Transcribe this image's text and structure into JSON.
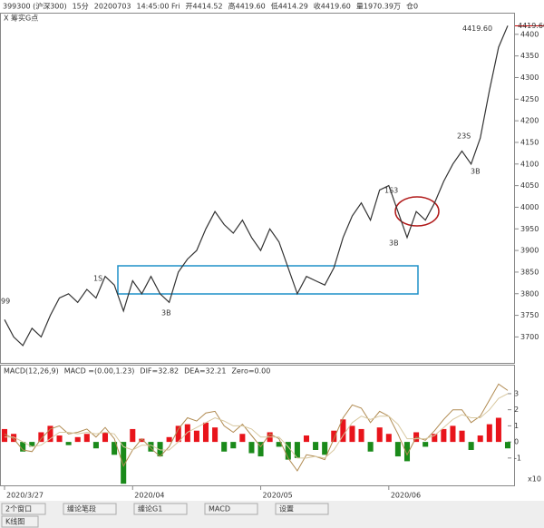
{
  "header": {
    "items": [
      "399300 (沪深300)",
      "15分",
      "20200703",
      "14:45:00 Fri",
      "开4414.52",
      "高4419.60",
      "低4414.29",
      "收4419.60",
      "量1970.39万",
      "仓0"
    ],
    "indicator": "X 筹实G点"
  },
  "chart_data": [
    {
      "type": "line",
      "name": "price",
      "values": [
        3740,
        3700,
        3680,
        3720,
        3700,
        3750,
        3790,
        3800,
        3780,
        3810,
        3790,
        3840,
        3820,
        3760,
        3830,
        3800,
        3840,
        3800,
        3780,
        3850,
        3880,
        3900,
        3950,
        3990,
        3960,
        3940,
        3970,
        3930,
        3900,
        3950,
        3920,
        3860,
        3800,
        3840,
        3830,
        3820,
        3860,
        3930,
        3980,
        4010,
        3970,
        4040,
        4050,
        3990,
        3930,
        3990,
        3970,
        4010,
        4060,
        4100,
        4130,
        4100,
        4160,
        4270,
        4370,
        4420
      ],
      "color": "#333333",
      "xlim": [
        0,
        55
      ],
      "xticks": [
        {
          "value": 0,
          "label": "2020/3/27"
        },
        {
          "value": 14,
          "label": "2020/04"
        },
        {
          "value": 28,
          "label": "2020/05"
        },
        {
          "value": 42,
          "label": "2020/06"
        }
      ],
      "ylim": [
        3640,
        4450
      ],
      "yticks": [
        3700,
        3750,
        3800,
        3850,
        3900,
        3950,
        4000,
        4050,
        4100,
        4150,
        4200,
        4250,
        4300,
        4350,
        4400
      ],
      "last_price": {
        "value": 4419.6,
        "label": "4419.60"
      },
      "annotations": [
        "99",
        "1S",
        "3B",
        "1S3",
        "3B",
        "23S",
        "3B"
      ]
    },
    {
      "type": "macd",
      "title": "MACD(12,26,9)",
      "readouts": [
        "MACD =(0.00,1.23)",
        "DIF=32.82",
        "DEA=32.21",
        "Zero=0.00"
      ],
      "unit": "x10",
      "ylim": [
        -2.7,
        4.8
      ],
      "yticks": [
        -1,
        0,
        1,
        2,
        3
      ],
      "xlim": [
        0,
        55
      ],
      "histogram": [
        0.8,
        0.5,
        -0.6,
        -0.3,
        0.6,
        1.0,
        0.4,
        -0.2,
        0.3,
        0.5,
        -0.4,
        0.6,
        -0.8,
        -2.6,
        0.8,
        0.2,
        -0.6,
        -0.9,
        0.3,
        1.0,
        1.1,
        0.7,
        1.2,
        0.9,
        -0.6,
        -0.4,
        0.5,
        -0.7,
        -0.9,
        0.6,
        -0.3,
        -1.1,
        -1.0,
        0.4,
        -0.5,
        -0.8,
        0.7,
        1.4,
        1.0,
        0.8,
        -0.6,
        0.9,
        0.5,
        -0.9,
        -1.2,
        0.6,
        -0.3,
        0.5,
        0.8,
        1.0,
        0.7,
        -0.5,
        0.4,
        1.1,
        1.5,
        -0.4
      ],
      "up_color": "#e8141b",
      "down_color": "#1a8a1a",
      "series": [
        {
          "name": "DIF",
          "color": "#b08a50",
          "values": [
            0.5,
            0.2,
            -0.5,
            -0.6,
            0.2,
            0.8,
            1.0,
            0.5,
            0.6,
            0.8,
            0.3,
            0.9,
            0.2,
            -1.5,
            -0.5,
            0.2,
            -0.4,
            -0.9,
            -0.3,
            0.8,
            1.5,
            1.3,
            1.8,
            1.9,
            1.0,
            0.6,
            1.1,
            0.4,
            -0.3,
            0.5,
            0.2,
            -1.0,
            -1.8,
            -0.8,
            -0.9,
            -1.1,
            0.2,
            1.5,
            2.3,
            2.1,
            1.2,
            1.9,
            1.6,
            0.5,
            -0.8,
            0.3,
            0.1,
            0.7,
            1.4,
            2.0,
            2.0,
            1.2,
            1.6,
            2.6,
            3.6,
            3.2
          ]
        },
        {
          "name": "DEA",
          "color": "#d8c8a0",
          "values": [
            0.3,
            0.3,
            0.0,
            -0.3,
            -0.2,
            0.2,
            0.6,
            0.6,
            0.5,
            0.6,
            0.5,
            0.6,
            0.5,
            -0.3,
            -0.5,
            -0.2,
            -0.2,
            -0.5,
            -0.5,
            0.0,
            0.6,
            0.9,
            1.2,
            1.5,
            1.3,
            1.0,
            1.0,
            0.8,
            0.3,
            0.3,
            0.3,
            -0.3,
            -1.0,
            -1.0,
            -0.9,
            -1.0,
            -0.5,
            0.4,
            1.2,
            1.6,
            1.4,
            1.6,
            1.6,
            1.1,
            0.2,
            0.2,
            0.2,
            0.4,
            0.9,
            1.4,
            1.7,
            1.5,
            1.5,
            2.0,
            2.7,
            3.0
          ]
        }
      ]
    }
  ],
  "tabs": [
    "2个窗口",
    "缠论笔段",
    "缠论G1",
    "MACD",
    "设置"
  ],
  "view": "K线图"
}
